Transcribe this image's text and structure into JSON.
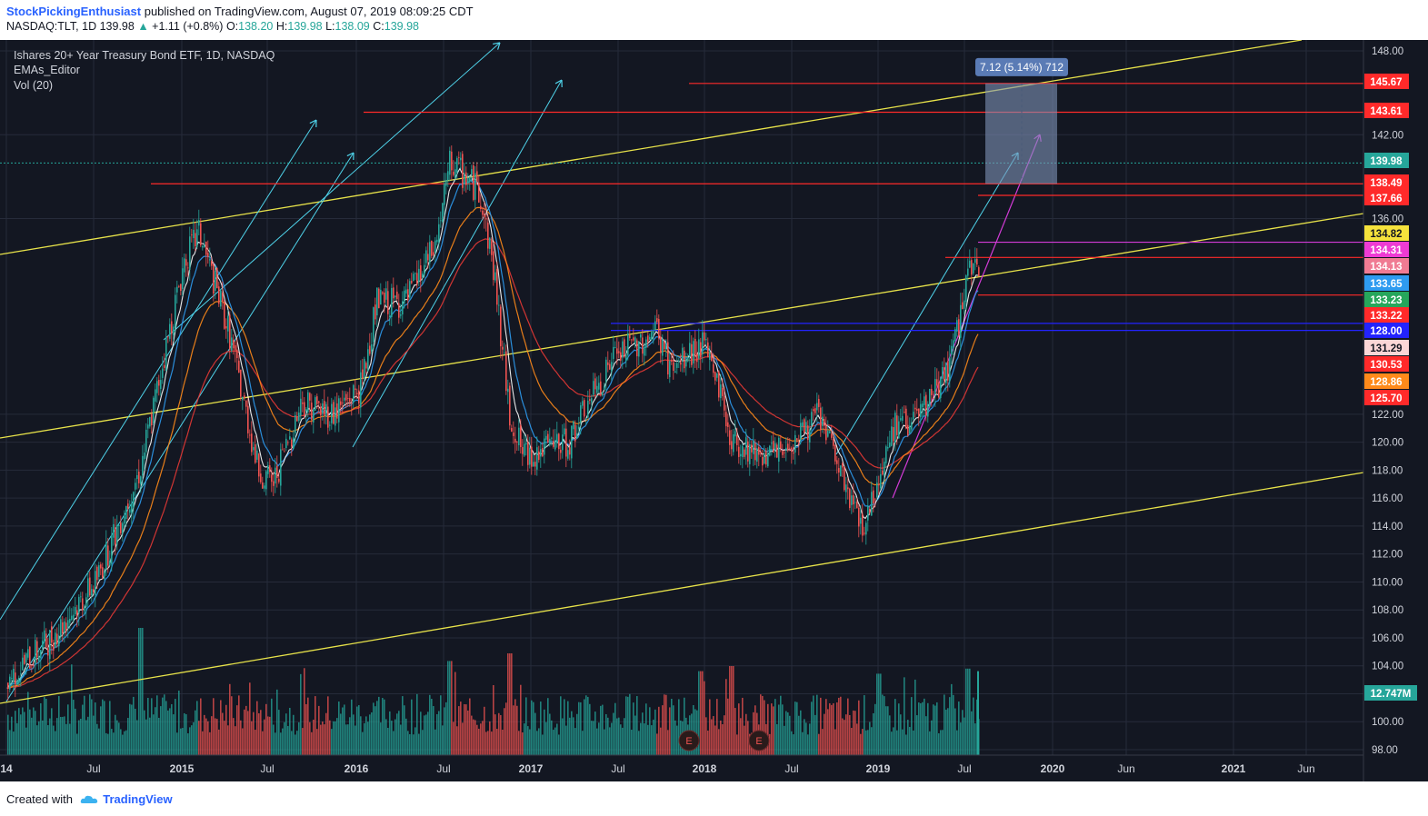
{
  "header": {
    "author": "StockPickingEnthusiast",
    "published": "published on TradingView.com, August 07, 2019 08:09:25 CDT",
    "symbol": "NASDAQ:TLT, 1D",
    "last": "139.98",
    "change_arrow": "▲",
    "change": "+1.11 (+0.8%)",
    "o_label": "O:",
    "o": "138.20",
    "h_label": "H:",
    "h": "139.98",
    "l_label": "L:",
    "l": "138.09",
    "c_label": "C:",
    "c": "139.98"
  },
  "legend": {
    "title": "Ishares 20+ Year Treasury Bond ETF, 1D, NASDAQ",
    "ind1": "EMAs_Editor",
    "ind2": "Vol (20)"
  },
  "measure_label": "7.12 (5.14%) 712",
  "footer": {
    "created": "Created with",
    "brand": "TradingView"
  },
  "colors": {
    "background": "#131722",
    "grid": "#262b3a",
    "up": "#26a69a",
    "down": "#ef5350",
    "yellow": "#e8e34a",
    "cyan": "#4fd3ea",
    "magenta": "#d23bd6",
    "red_line": "#ff2a2a",
    "blue_line": "#2323ff"
  },
  "chart_data": {
    "type": "candlestick",
    "title": "Ishares 20+ Year Treasury Bond ETF, 1D, NASDAQ",
    "ylim": [
      97,
      149
    ],
    "y_ticks": [
      "148.00",
      "142.00",
      "136.00",
      "122.00",
      "120.00",
      "118.00",
      "116.00",
      "114.00",
      "112.00",
      "110.00",
      "108.00",
      "106.00",
      "104.00",
      "102.00",
      "100.00",
      "98.00"
    ],
    "x_ticks": [
      "14",
      "Jul",
      "2015",
      "Jul",
      "2016",
      "Jul",
      "2017",
      "Jul",
      "2018",
      "Jul",
      "2019",
      "Jul",
      "2020",
      "Jun",
      "2021",
      "Jun"
    ],
    "price_path": [
      [
        "2014-01",
        103
      ],
      [
        "2014-04",
        106
      ],
      [
        "2014-07",
        110
      ],
      [
        "2014-10",
        118
      ],
      [
        "2015-01",
        133
      ],
      [
        "2015-02",
        135
      ],
      [
        "2015-04",
        128
      ],
      [
        "2015-06",
        118
      ],
      [
        "2015-07",
        117
      ],
      [
        "2015-09",
        123
      ],
      [
        "2015-11",
        122
      ],
      [
        "2016-01",
        124
      ],
      [
        "2016-02",
        130
      ],
      [
        "2016-04",
        130
      ],
      [
        "2016-06",
        134
      ],
      [
        "2016-07",
        140
      ],
      [
        "2016-09",
        138
      ],
      [
        "2016-10",
        132
      ],
      [
        "2016-11",
        122
      ],
      [
        "2016-12",
        119
      ],
      [
        "2017-03",
        120
      ],
      [
        "2017-06",
        126
      ],
      [
        "2017-09",
        128
      ],
      [
        "2017-10",
        125
      ],
      [
        "2017-12",
        127
      ],
      [
        "2018-01",
        125
      ],
      [
        "2018-02",
        120
      ],
      [
        "2018-05",
        119
      ],
      [
        "2018-07",
        121
      ],
      [
        "2018-08",
        122
      ],
      [
        "2018-10",
        116
      ],
      [
        "2018-11",
        114
      ],
      [
        "2019-01",
        121
      ],
      [
        "2019-03",
        122
      ],
      [
        "2019-05",
        126
      ],
      [
        "2019-06",
        132
      ],
      [
        "2019-07",
        132
      ],
      [
        "2019-08",
        139.98
      ]
    ],
    "volume_peaks": [
      [
        "2014-10",
        5.0
      ],
      [
        "2016-07",
        3.7
      ],
      [
        "2016-11",
        4.0
      ],
      [
        "2017-12",
        3.3
      ],
      [
        "2018-02",
        3.5
      ],
      [
        "2018-12",
        3.2
      ],
      [
        "2019-06",
        3.4
      ],
      [
        "2019-08",
        3.5
      ]
    ],
    "volume_last": "12.747M",
    "price_labels": [
      {
        "value": "145.67",
        "price": 145.67,
        "bg": "#ff2a2a",
        "fg": "#ffffff"
      },
      {
        "value": "143.61",
        "price": 143.61,
        "bg": "#ff2a2a",
        "fg": "#ffffff"
      },
      {
        "value": "139.98",
        "price": 139.98,
        "bg": "#26a69a",
        "fg": "#ffffff"
      },
      {
        "value": "138.49",
        "price": 138.49,
        "bg": "#ff2a2a",
        "fg": "#ffffff"
      },
      {
        "value": "137.66",
        "price": 137.66,
        "bg": "#ff2a2a",
        "fg": "#ffffff"
      },
      {
        "value": "134.82",
        "price": 134.82,
        "bg": "#f5e23c",
        "fg": "#131722"
      },
      {
        "value": "134.31",
        "price": 134.31,
        "bg": "#ee3bd4",
        "fg": "#ffffff"
      },
      {
        "value": "134.13",
        "price": 134.13,
        "bg": "#f07b93",
        "fg": "#ffffff"
      },
      {
        "value": "133.65",
        "price": 133.65,
        "bg": "#2e9bf0",
        "fg": "#ffffff"
      },
      {
        "value": "133.23",
        "price": 133.23,
        "bg": "#26a65b",
        "fg": "#ffffff"
      },
      {
        "value": "133.22",
        "price": 133.22,
        "bg": "#ff2a2a",
        "fg": "#ffffff"
      },
      {
        "value": "128.00",
        "price": 128.0,
        "bg": "#2323ff",
        "fg": "#ffffff"
      },
      {
        "value": "131.29",
        "price": 131.29,
        "bg": "#fbd6d6",
        "fg": "#131722"
      },
      {
        "value": "130.53",
        "price": 130.53,
        "bg": "#ff2a2a",
        "fg": "#ffffff"
      },
      {
        "value": "128.86",
        "price": 128.86,
        "bg": "#ff8a1a",
        "fg": "#ffffff"
      },
      {
        "value": "125.70",
        "price": 125.7,
        "bg": "#ff2a2a",
        "fg": "#ffffff"
      }
    ],
    "earnings_markers": [
      "E",
      "E"
    ],
    "grid": true,
    "legend_position": "top-left"
  }
}
